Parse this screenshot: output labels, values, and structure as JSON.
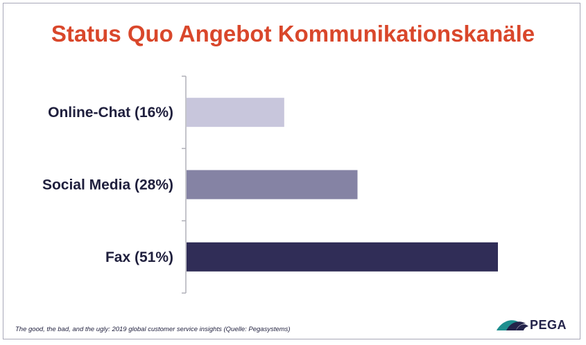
{
  "chart_data": {
    "type": "bar",
    "orientation": "horizontal",
    "title": "Status Quo Angebot Kommunikationskanäle",
    "categories": [
      "Online-Chat (16%)",
      "Social Media (28%)",
      "Fax (51%)"
    ],
    "values": [
      16,
      28,
      51
    ],
    "unit": "%",
    "xlim": [
      0,
      60
    ],
    "bar_colors": [
      "#c8c6dc",
      "#8583a4",
      "#302d57"
    ],
    "grid": false,
    "legend": "none"
  },
  "colors": {
    "title": "#d9472b",
    "label": "#1f1f3d",
    "axis": "#b0b0b8"
  },
  "footer": {
    "source": "The good, the bad, and the ugly: 2019 global customer service insights (Quelle: Pegasystems)",
    "logo_text": "PEGA",
    "logo_icon": "pega-wing-icon"
  }
}
